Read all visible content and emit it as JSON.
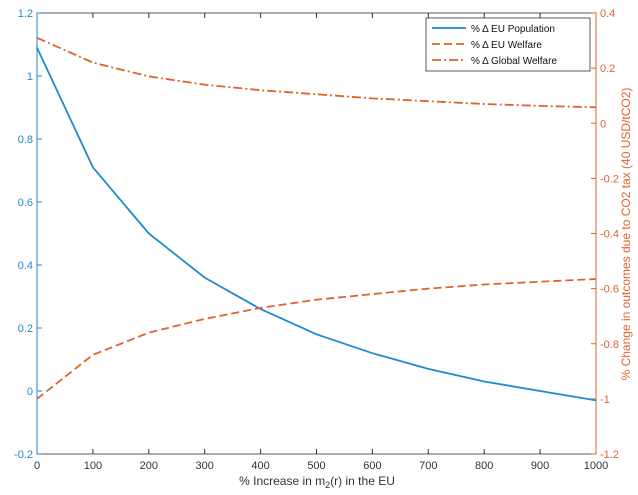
{
  "chart_data": {
    "type": "line",
    "xlabel_main": "% Increase in m",
    "xlabel_sub": "2",
    "xlabel_tail": "(r) in the EU",
    "ylabel_right": "% Change in outcomes due to CO2 tax (40 USD/tCO2)",
    "x": [
      0,
      100,
      200,
      300,
      400,
      500,
      600,
      700,
      800,
      900,
      1000
    ],
    "x_ticks": [
      "0",
      "100",
      "200",
      "300",
      "400",
      "500",
      "600",
      "700",
      "800",
      "900",
      "1000"
    ],
    "xlim": [
      0,
      1000
    ],
    "left_axis": {
      "ylim": [
        -0.2,
        1.2
      ],
      "ticks": [
        -0.2,
        0,
        0.2,
        0.4,
        0.6,
        0.8,
        1,
        1.2
      ],
      "tick_labels": [
        "-0.2",
        "0",
        "0.2",
        "0.4",
        "0.6",
        "0.8",
        "1",
        "1.2"
      ],
      "color": "#1f8ad0"
    },
    "right_axis": {
      "ylim": [
        -1.2,
        0.4
      ],
      "ticks": [
        -1.2,
        -1,
        -0.8,
        -0.6,
        -0.4,
        -0.2,
        0,
        0.2,
        0.4
      ],
      "tick_labels": [
        "-1.2",
        "-1",
        "-0.8",
        "-0.6",
        "-0.4",
        "-0.2",
        "0",
        "0.2",
        "0.4"
      ],
      "color": "#e0622e"
    },
    "series": [
      {
        "name": "% Δ EU Population",
        "axis": "left",
        "style": "solid",
        "color": "#1f8ad0",
        "values": [
          1.09,
          0.71,
          0.5,
          0.36,
          0.26,
          0.18,
          0.12,
          0.07,
          0.03,
          0.0,
          -0.03
        ]
      },
      {
        "name": "% Δ EU Welfare",
        "axis": "right",
        "style": "dashed",
        "color": "#e0622e",
        "values": [
          -1.0,
          -0.84,
          -0.76,
          -0.71,
          -0.67,
          -0.64,
          -0.62,
          -0.6,
          -0.585,
          -0.575,
          -0.565
        ]
      },
      {
        "name": "% Δ Global Welfare",
        "axis": "right",
        "style": "dashdot",
        "color": "#e0622e",
        "values": [
          0.31,
          0.22,
          0.17,
          0.14,
          0.12,
          0.105,
          0.09,
          0.08,
          0.07,
          0.063,
          0.058
        ]
      }
    ],
    "legend_position": "top-right",
    "grid": false
  }
}
